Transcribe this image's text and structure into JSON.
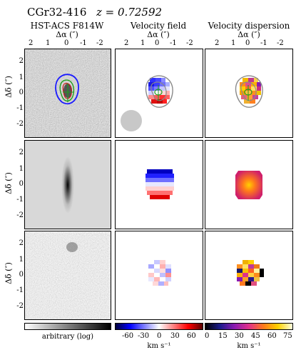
{
  "header": {
    "object": "CGr32-416",
    "redshift": "z = 0.72592"
  },
  "columns": [
    {
      "title": "HST-ACS F814W",
      "xlabel": "Δα (″)"
    },
    {
      "title": "Velocity field",
      "xlabel": "Δα (″)"
    },
    {
      "title": "Velocity dispersion",
      "xlabel": "Δα (″)"
    }
  ],
  "axes": {
    "ylabel": "Δδ (″)",
    "xticks": [
      "2",
      "1",
      "0",
      "-1",
      "-2"
    ],
    "yticks": [
      "2",
      "1",
      "0",
      "-1",
      "-2"
    ]
  },
  "colorbars": {
    "image": {
      "label": "arbitrary (log)"
    },
    "velocity": {
      "ticks": [
        "-60",
        "-30",
        "0",
        "30",
        "60"
      ],
      "unit": "km s⁻¹"
    },
    "dispersion": {
      "ticks": [
        "0",
        "15",
        "30",
        "45",
        "60",
        "75"
      ],
      "unit": "km s⁻¹"
    }
  },
  "colors": {
    "contour_blue": "#1a1aff",
    "contour_green": "#1f9e1f",
    "contour_red": "#c81a1a",
    "contour_gray": "#8a8a8a"
  }
}
